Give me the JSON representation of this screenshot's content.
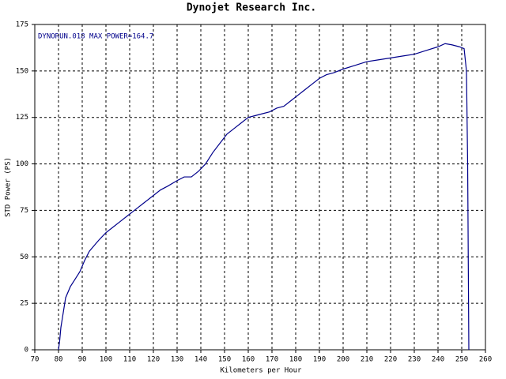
{
  "chart_data": {
    "type": "line",
    "title": "Dynojet  Research  Inc.",
    "annotation": "DYNORUN.018  MAX POWER=164.7",
    "x_label": "Kilometers per Hour",
    "y_label": "STD Power (PS)",
    "xlim": [
      70,
      260
    ],
    "ylim": [
      0,
      175
    ],
    "xticks": [
      70,
      80,
      90,
      100,
      110,
      120,
      130,
      140,
      150,
      160,
      170,
      180,
      190,
      200,
      210,
      220,
      230,
      240,
      250,
      260
    ],
    "yticks": [
      0,
      25,
      50,
      75,
      100,
      125,
      150,
      175
    ],
    "grid": true,
    "series": [
      {
        "name": "DYNORUN.018",
        "color": "#00008b",
        "x": [
          80,
          80.5,
          81,
          82,
          83,
          85,
          87,
          89,
          91,
          93,
          95,
          97,
          100,
          103,
          106,
          110,
          113,
          116,
          120,
          123,
          126,
          130,
          133,
          136,
          139,
          142,
          145,
          148,
          151,
          154,
          157,
          160,
          163,
          166,
          169,
          172,
          175,
          178,
          181,
          184,
          187,
          190,
          193,
          196,
          200,
          205,
          210,
          215,
          220,
          225,
          230,
          235,
          240,
          243,
          246,
          249,
          251,
          252,
          252.5,
          253
        ],
        "values": [
          0,
          5,
          12,
          20,
          28,
          34,
          38,
          42,
          48,
          53,
          56,
          59,
          63,
          66,
          69,
          73,
          76,
          79,
          83,
          86,
          88,
          91,
          93,
          93,
          96,
          100,
          106,
          111,
          116,
          119,
          122,
          125,
          126,
          127,
          128,
          130,
          131,
          134,
          137,
          140,
          143,
          146,
          148,
          149,
          151,
          153,
          155,
          156,
          157,
          158,
          159,
          161,
          163,
          164.7,
          164,
          163,
          162,
          150,
          100,
          0
        ]
      }
    ]
  }
}
